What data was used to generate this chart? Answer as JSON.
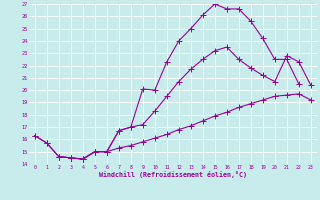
{
  "xlabel": "Windchill (Refroidissement éolien,°C)",
  "bg_color": "#c8ecec",
  "grid_color": "#ffffff",
  "line_color": "#990099",
  "xlim": [
    -0.5,
    23.5
  ],
  "ylim": [
    14,
    27
  ],
  "xticks": [
    0,
    1,
    2,
    3,
    4,
    5,
    6,
    7,
    8,
    9,
    10,
    11,
    12,
    13,
    14,
    15,
    16,
    17,
    18,
    19,
    20,
    21,
    22,
    23
  ],
  "yticks": [
    14,
    15,
    16,
    17,
    18,
    19,
    20,
    21,
    22,
    23,
    24,
    25,
    26,
    27
  ],
  "line1_x": [
    0,
    1,
    2,
    3,
    4,
    5,
    6,
    7,
    8,
    9,
    10,
    11,
    12,
    13,
    14,
    15,
    16,
    17,
    18,
    19,
    20,
    21,
    22
  ],
  "line1_y": [
    16.3,
    15.7,
    14.6,
    14.5,
    14.4,
    15.0,
    15.0,
    16.7,
    17.0,
    20.1,
    20.0,
    22.3,
    24.0,
    25.0,
    26.1,
    27.0,
    26.6,
    26.6,
    25.6,
    24.2,
    22.5,
    22.5,
    20.5
  ],
  "line2_x": [
    0,
    1,
    2,
    3,
    4,
    5,
    6,
    7,
    8,
    9,
    10,
    11,
    12,
    13,
    14,
    15,
    16,
    17,
    18,
    19,
    20,
    21,
    22,
    23
  ],
  "line2_y": [
    16.3,
    15.7,
    14.6,
    14.5,
    14.4,
    15.0,
    15.0,
    15.3,
    15.5,
    15.8,
    16.1,
    16.4,
    16.8,
    17.1,
    17.5,
    17.9,
    18.2,
    18.6,
    18.9,
    19.2,
    19.5,
    19.6,
    19.7,
    19.2
  ],
  "line3_x": [
    2,
    3,
    4,
    5,
    6,
    7,
    8,
    9,
    10,
    11,
    12,
    13,
    14,
    15,
    16,
    17,
    18,
    19,
    20,
    21,
    22,
    23
  ],
  "line3_y": [
    14.6,
    14.5,
    14.4,
    15.0,
    15.0,
    16.7,
    17.0,
    17.2,
    18.3,
    19.5,
    20.7,
    21.7,
    22.5,
    23.2,
    23.5,
    22.5,
    21.8,
    21.2,
    20.7,
    22.8,
    22.3,
    20.4
  ]
}
